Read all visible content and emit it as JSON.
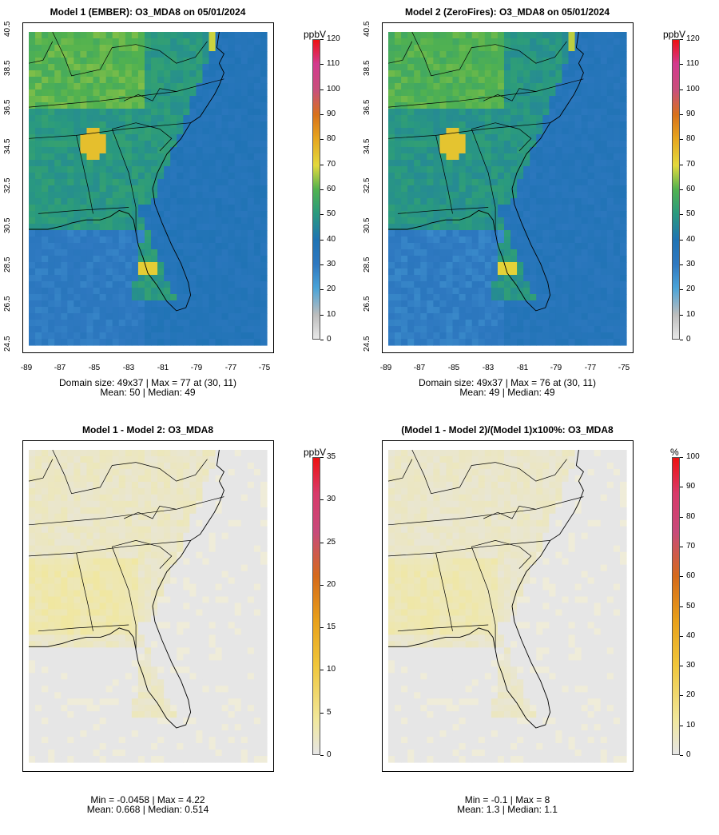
{
  "panels": [
    {
      "id": "p1",
      "title": "Model 1 (EMBER): O3_MDA8 on 05/01/2024",
      "stats_line1": "Domain size: 49x37 | Max = 77 at (30, 11)",
      "stats_line2": "Mean: 50 |  Median: 49",
      "y_ticks": [
        "24.5",
        "26.5",
        "28.5",
        "30.5",
        "32.5",
        "34.5",
        "36.5",
        "38.5",
        "40.5"
      ],
      "x_ticks": [
        "-89",
        "-87",
        "-85",
        "-83",
        "-81",
        "-79",
        "-77",
        "-75"
      ],
      "field": "concentration",
      "colorbar": {
        "unit": "ppbV",
        "ticks": [
          "0",
          "10",
          "20",
          "30",
          "40",
          "50",
          "60",
          "70",
          "80",
          "90",
          "100",
          "110",
          "120"
        ]
      }
    },
    {
      "id": "p2",
      "title": "Model 2 (ZeroFires): O3_MDA8 on 05/01/2024",
      "stats_line1": "Domain size: 49x37 | Max = 76 at (30, 11)",
      "stats_line2": "Mean: 49 |  Median: 49",
      "y_ticks": [
        "24.5",
        "26.5",
        "28.5",
        "30.5",
        "32.5",
        "34.5",
        "36.5",
        "38.5",
        "40.5"
      ],
      "x_ticks": [
        "-89",
        "-87",
        "-85",
        "-83",
        "-81",
        "-79",
        "-77",
        "-75"
      ],
      "field": "concentration",
      "colorbar": {
        "unit": "ppbV",
        "ticks": [
          "0",
          "10",
          "20",
          "30",
          "40",
          "50",
          "60",
          "70",
          "80",
          "90",
          "100",
          "110",
          "120"
        ]
      }
    },
    {
      "id": "p3",
      "title": "Model 1 - Model 2: O3_MDA8",
      "stats_line1": "Min = -0.0458 | Max = 4.22",
      "stats_line2": "Mean: 0.668 |  Median: 0.514",
      "field": "difference",
      "colorbar": {
        "unit": "ppbV",
        "ticks": [
          "0",
          "5",
          "10",
          "15",
          "20",
          "25",
          "30",
          "35"
        ]
      }
    },
    {
      "id": "p4",
      "title": "(Model 1 - Model 2)/(Model 1)x100%: O3_MDA8",
      "stats_line1": "Min = -0.1 | Max = 8",
      "stats_line2": "Mean: 1.3 |  Median: 1.1",
      "field": "percent",
      "colorbar": {
        "unit": "%",
        "ticks": [
          "0",
          "10",
          "20",
          "30",
          "40",
          "50",
          "60",
          "70",
          "80",
          "90",
          "100"
        ]
      }
    }
  ],
  "colors": {
    "ocean_low": "#2f7fc1",
    "land_mid": "#3aa56a",
    "high": "#e8d23a",
    "peak": "#e88a1a",
    "diff_background": "#e6e6e6",
    "diff_land": "#efecd9"
  }
}
